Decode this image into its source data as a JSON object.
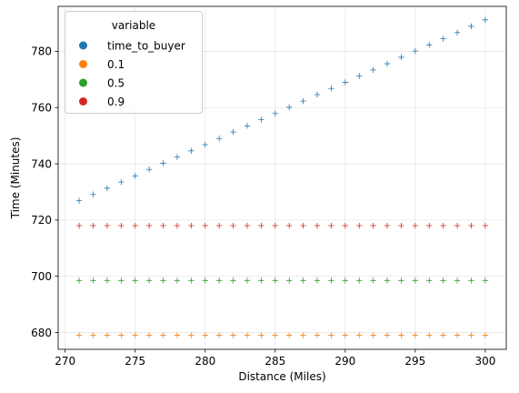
{
  "chart_data": {
    "type": "scatter",
    "marker": "plus",
    "title": "",
    "xlabel": "Distance (Miles)",
    "ylabel": "Time (Minutes)",
    "xlim": [
      269.5,
      301.5
    ],
    "ylim": [
      674,
      796
    ],
    "x_ticks": [
      270,
      275,
      280,
      285,
      290,
      295,
      300
    ],
    "y_ticks": [
      680,
      700,
      720,
      740,
      760,
      780
    ],
    "grid": true,
    "legend": {
      "placement": "top-left",
      "title": "variable",
      "entries": [
        "time_to_buyer",
        "0.1",
        "0.5",
        "0.9"
      ]
    },
    "x": [
      271,
      272,
      273,
      274,
      275,
      276,
      277,
      278,
      279,
      280,
      281,
      282,
      283,
      284,
      285,
      286,
      287,
      288,
      289,
      290,
      291,
      292,
      293,
      294,
      295,
      296,
      297,
      298,
      299,
      300
    ],
    "series": [
      {
        "name": "time_to_buyer",
        "color": "#1f77b4",
        "values": [
          726.9,
          729.1,
          731.3,
          733.5,
          735.7,
          738.0,
          740.2,
          742.4,
          744.6,
          746.8,
          749.0,
          751.3,
          753.5,
          755.7,
          757.9,
          760.1,
          762.3,
          764.6,
          766.8,
          769.0,
          771.2,
          773.4,
          775.6,
          777.9,
          780.1,
          782.3,
          784.5,
          786.7,
          788.9,
          791.2
        ]
      },
      {
        "name": "0.1",
        "color": "#ff7f0e",
        "values": [
          679,
          679,
          679,
          679,
          679,
          679,
          679,
          679,
          679,
          679,
          679,
          679,
          679,
          679,
          679,
          679,
          679,
          679,
          679,
          679,
          679,
          679,
          679,
          679,
          679,
          679,
          679,
          679,
          679,
          679
        ]
      },
      {
        "name": "0.5",
        "color": "#2ca02c",
        "values": [
          698.5,
          698.5,
          698.5,
          698.5,
          698.5,
          698.5,
          698.5,
          698.5,
          698.5,
          698.5,
          698.5,
          698.5,
          698.5,
          698.5,
          698.5,
          698.5,
          698.5,
          698.5,
          698.5,
          698.5,
          698.5,
          698.5,
          698.5,
          698.5,
          698.5,
          698.5,
          698.5,
          698.5,
          698.5,
          698.5
        ]
      },
      {
        "name": "0.9",
        "color": "#d62728",
        "values": [
          718,
          718,
          718,
          718,
          718,
          718,
          718,
          718,
          718,
          718,
          718,
          718,
          718,
          718,
          718,
          718,
          718,
          718,
          718,
          718,
          718,
          718,
          718,
          718,
          718,
          718,
          718,
          718,
          718,
          718
        ]
      }
    ]
  }
}
